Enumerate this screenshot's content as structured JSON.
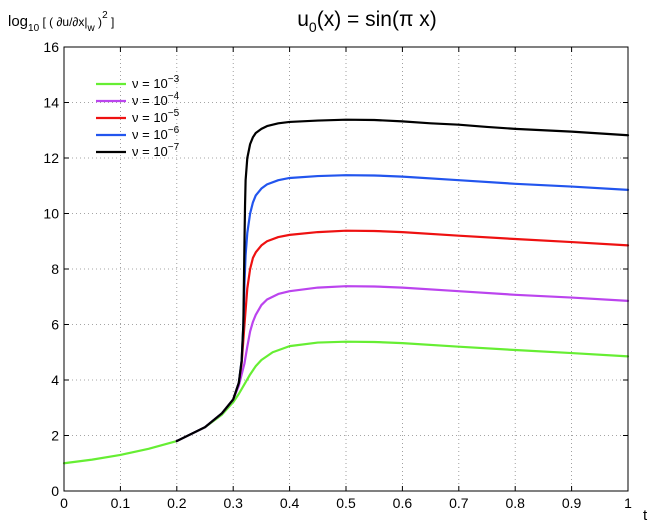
{
  "chart_data": {
    "type": "line",
    "title": {
      "main": "u",
      "sub": "0",
      "rest": "(x) = sin(π x)"
    },
    "ylabel": {
      "pre": "log",
      "sub1": "10",
      "mid1": " [ ( ∂u/∂x|",
      "sub2": "w",
      "mid2": " )",
      "sup": "2",
      "post": " ]"
    },
    "xlabel": "t",
    "xlim": [
      0,
      1
    ],
    "ylim": [
      0,
      16
    ],
    "xticks": [
      0,
      0.1,
      0.2,
      0.3,
      0.4,
      0.5,
      0.6,
      0.7,
      0.8,
      0.9,
      1
    ],
    "xtick_labels": [
      "0",
      "0.1",
      "0.2",
      "0.3",
      "0.4",
      "0.5",
      "0.6",
      "0.7",
      "0.8",
      "0.9",
      "1"
    ],
    "yticks": [
      0,
      2,
      4,
      6,
      8,
      10,
      12,
      14,
      16
    ],
    "ytick_labels": [
      "0",
      "2",
      "4",
      "6",
      "8",
      "10",
      "12",
      "14",
      "16"
    ],
    "grid": true,
    "legend_position": "top-left",
    "series": [
      {
        "name": "ν = 10",
        "exp": "−3",
        "color": "#66ee33",
        "x": [
          0,
          0.05,
          0.1,
          0.15,
          0.2,
          0.25,
          0.28,
          0.3,
          0.31,
          0.32,
          0.33,
          0.34,
          0.35,
          0.37,
          0.4,
          0.45,
          0.5,
          0.55,
          0.6,
          0.7,
          0.8,
          0.9,
          1.0
        ],
        "y": [
          1.0,
          1.13,
          1.3,
          1.52,
          1.8,
          2.3,
          2.75,
          3.2,
          3.5,
          3.85,
          4.2,
          4.5,
          4.72,
          5.0,
          5.22,
          5.35,
          5.38,
          5.37,
          5.33,
          5.2,
          5.08,
          4.97,
          4.85
        ]
      },
      {
        "name": "ν = 10",
        "exp": "−4",
        "color": "#bb44ee",
        "x": [
          0.2,
          0.25,
          0.28,
          0.3,
          0.31,
          0.32,
          0.325,
          0.33,
          0.335,
          0.34,
          0.35,
          0.36,
          0.38,
          0.4,
          0.45,
          0.5,
          0.55,
          0.6,
          0.7,
          0.8,
          0.9,
          1.0
        ],
        "y": [
          1.8,
          2.3,
          2.8,
          3.3,
          3.8,
          4.6,
          5.2,
          5.75,
          6.1,
          6.35,
          6.7,
          6.9,
          7.1,
          7.2,
          7.33,
          7.38,
          7.37,
          7.33,
          7.2,
          7.07,
          6.97,
          6.85
        ]
      },
      {
        "name": "ν = 10",
        "exp": "−5",
        "color": "#ee1111",
        "x": [
          0.2,
          0.25,
          0.28,
          0.3,
          0.31,
          0.315,
          0.32,
          0.325,
          0.33,
          0.335,
          0.34,
          0.35,
          0.36,
          0.38,
          0.4,
          0.45,
          0.5,
          0.55,
          0.6,
          0.7,
          0.8,
          0.9,
          1.0
        ],
        "y": [
          1.8,
          2.3,
          2.8,
          3.3,
          3.9,
          4.6,
          6.0,
          7.3,
          8.0,
          8.4,
          8.6,
          8.85,
          9.0,
          9.15,
          9.23,
          9.33,
          9.38,
          9.37,
          9.33,
          9.2,
          9.08,
          8.97,
          8.85
        ]
      },
      {
        "name": "ν = 10",
        "exp": "−6",
        "color": "#2255ee",
        "x": [
          0.2,
          0.25,
          0.28,
          0.3,
          0.31,
          0.315,
          0.318,
          0.32,
          0.322,
          0.325,
          0.33,
          0.335,
          0.34,
          0.35,
          0.36,
          0.38,
          0.4,
          0.45,
          0.5,
          0.55,
          0.6,
          0.7,
          0.8,
          0.9,
          1.0
        ],
        "y": [
          1.8,
          2.3,
          2.8,
          3.3,
          3.9,
          4.7,
          6.0,
          7.5,
          8.5,
          9.3,
          10.0,
          10.4,
          10.65,
          10.9,
          11.05,
          11.2,
          11.28,
          11.35,
          11.38,
          11.37,
          11.33,
          11.2,
          11.07,
          10.97,
          10.85
        ]
      },
      {
        "name": "ν = 10",
        "exp": "−7",
        "color": "#000000",
        "x": [
          0.2,
          0.25,
          0.28,
          0.3,
          0.31,
          0.315,
          0.318,
          0.319,
          0.32,
          0.321,
          0.322,
          0.325,
          0.33,
          0.335,
          0.34,
          0.35,
          0.36,
          0.38,
          0.4,
          0.45,
          0.5,
          0.55,
          0.6,
          0.65,
          0.7,
          0.75,
          0.8,
          0.9,
          1.0
        ],
        "y": [
          1.8,
          2.3,
          2.8,
          3.3,
          3.9,
          4.7,
          6.0,
          7.5,
          9.0,
          10.3,
          11.2,
          12.0,
          12.5,
          12.75,
          12.9,
          13.05,
          13.15,
          13.25,
          13.3,
          13.35,
          13.38,
          13.37,
          13.32,
          13.25,
          13.2,
          13.12,
          13.05,
          12.95,
          12.82
        ]
      }
    ]
  }
}
